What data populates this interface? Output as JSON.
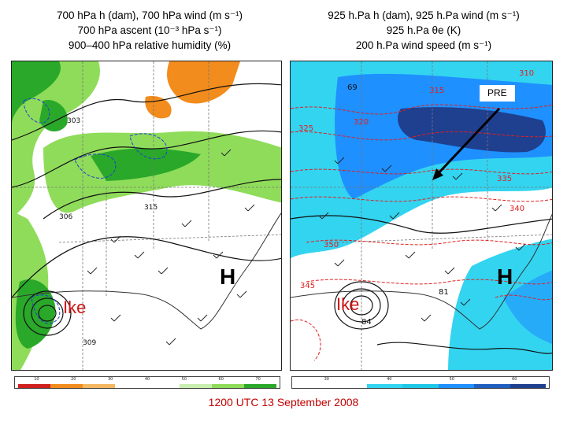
{
  "left_panel": {
    "title_lines": [
      "700 hPa h (dam), 700 hPa wind (m s⁻¹)",
      "700 hPa ascent (10⁻³ hPa s⁻¹)",
      "900–400 hPa relative humidity (%)"
    ],
    "labels": {
      "high": "H",
      "storm": "Ike",
      "contours": [
        "303",
        "306",
        "309",
        "315"
      ]
    },
    "colorbar_ticks": [
      "10",
      "20",
      "30",
      "40",
      "50",
      "60",
      "70"
    ]
  },
  "right_panel": {
    "title_lines": [
      "925 h.Pa h (dam), 925 h.Pa wind (m s⁻¹)",
      "925 h.Pa θe (K)",
      "200 h.Pa wind speed (m s⁻¹)"
    ],
    "labels": {
      "high": "H",
      "storm": "Ike",
      "annotation": "PRE",
      "contours": [
        "310",
        "315",
        "320",
        "325",
        "335",
        "340",
        "345",
        "350",
        "69",
        "81",
        "84"
      ]
    },
    "colorbar_ticks": [
      "30",
      "40",
      "50",
      "60"
    ]
  },
  "timestamp": "1200 UTC 13 September 2008",
  "colors": {
    "rh_green_light": "#8fdc5a",
    "rh_green_dark": "#2aa82a",
    "rh_orange": "#f28c1c",
    "jet_light": "#33d4f0",
    "jet_mid": "#1e90ff",
    "jet_dark": "#1f3f8f",
    "thetae_red": "#e02020",
    "timestamp_red": "#c00000"
  }
}
